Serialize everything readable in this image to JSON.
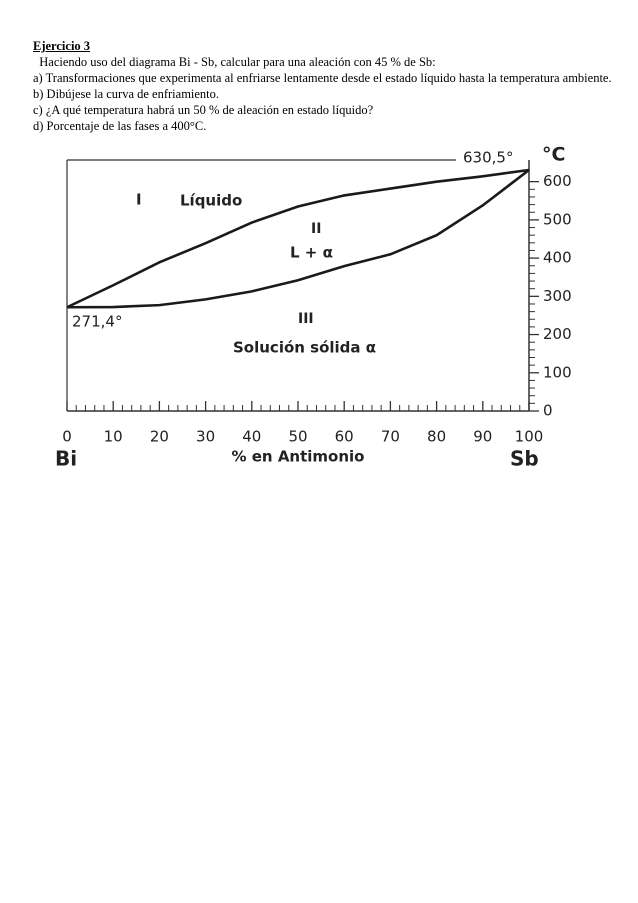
{
  "document": {
    "heading": "Ejercicio 3",
    "lines": [
      "  Haciendo uso del diagrama Bi - Sb, calcular para una aleación con 45 % de Sb:",
      "a) Transformaciones que experimenta al enfriarse lentamente desde el estado líquido hasta la temperatura ambiente.",
      "b) Dibújese la curva de enfriamiento.",
      "c) ¿A qué temperatura habrá un 50 % de aleación en estado líquido?",
      "d) Porcentaje de las fases a 400°C."
    ]
  },
  "chart_data": {
    "type": "line",
    "y_unit": "°C",
    "x_label": "% en Antimonio",
    "x_end_labels": [
      "Bi",
      "Sb"
    ],
    "annotations": [
      "630,5°",
      "271,4°",
      "I",
      "Líquido",
      "II",
      "L + α",
      "III",
      "Solución sólida α"
    ],
    "x": [
      0,
      10,
      20,
      30,
      40,
      50,
      60,
      70,
      80,
      90,
      100
    ],
    "series": [
      {
        "color": "#1a1a1a",
        "values": [
          271.4,
          329,
          389,
          439,
          493,
          535,
          564,
          582,
          600,
          614,
          630.5
        ]
      },
      {
        "color": "#1a1a1a",
        "values": [
          271.4,
          272,
          277,
          292,
          313,
          342,
          379,
          410,
          460,
          538,
          630.5
        ]
      }
    ],
    "xlim": [
      0,
      100
    ],
    "xticks": [
      0,
      10,
      20,
      30,
      40,
      50,
      60,
      70,
      80,
      90,
      100
    ],
    "ylim": [
      0,
      630.5
    ],
    "yticks": [
      0,
      100,
      200,
      300,
      400,
      500,
      600
    ]
  }
}
